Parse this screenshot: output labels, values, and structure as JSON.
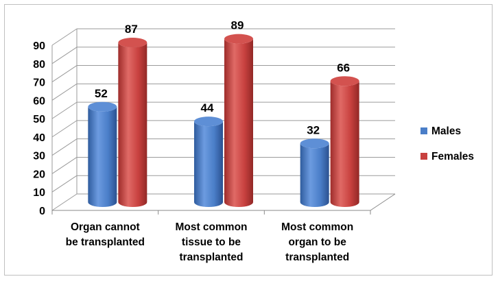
{
  "chart_data": {
    "type": "bar",
    "subtype": "3d-cylinder-clustered",
    "categories": [
      [
        "Organ cannot",
        "be transplanted"
      ],
      [
        "Most common",
        "tissue to be",
        "transplanted"
      ],
      [
        "Most common",
        "organ to be",
        "transplanted"
      ]
    ],
    "series": [
      {
        "name": "Males",
        "values": [
          52,
          44,
          32
        ],
        "color": "#4a7ec8"
      },
      {
        "name": "Females",
        "values": [
          87,
          89,
          66
        ],
        "color": "#c8413f"
      }
    ],
    "yticks": [
      0,
      10,
      20,
      30,
      40,
      50,
      60,
      70,
      80,
      90
    ],
    "ylim": [
      0,
      90
    ],
    "grid": true,
    "legend_position": "right",
    "title": "",
    "xlabel": "",
    "ylabel": ""
  }
}
